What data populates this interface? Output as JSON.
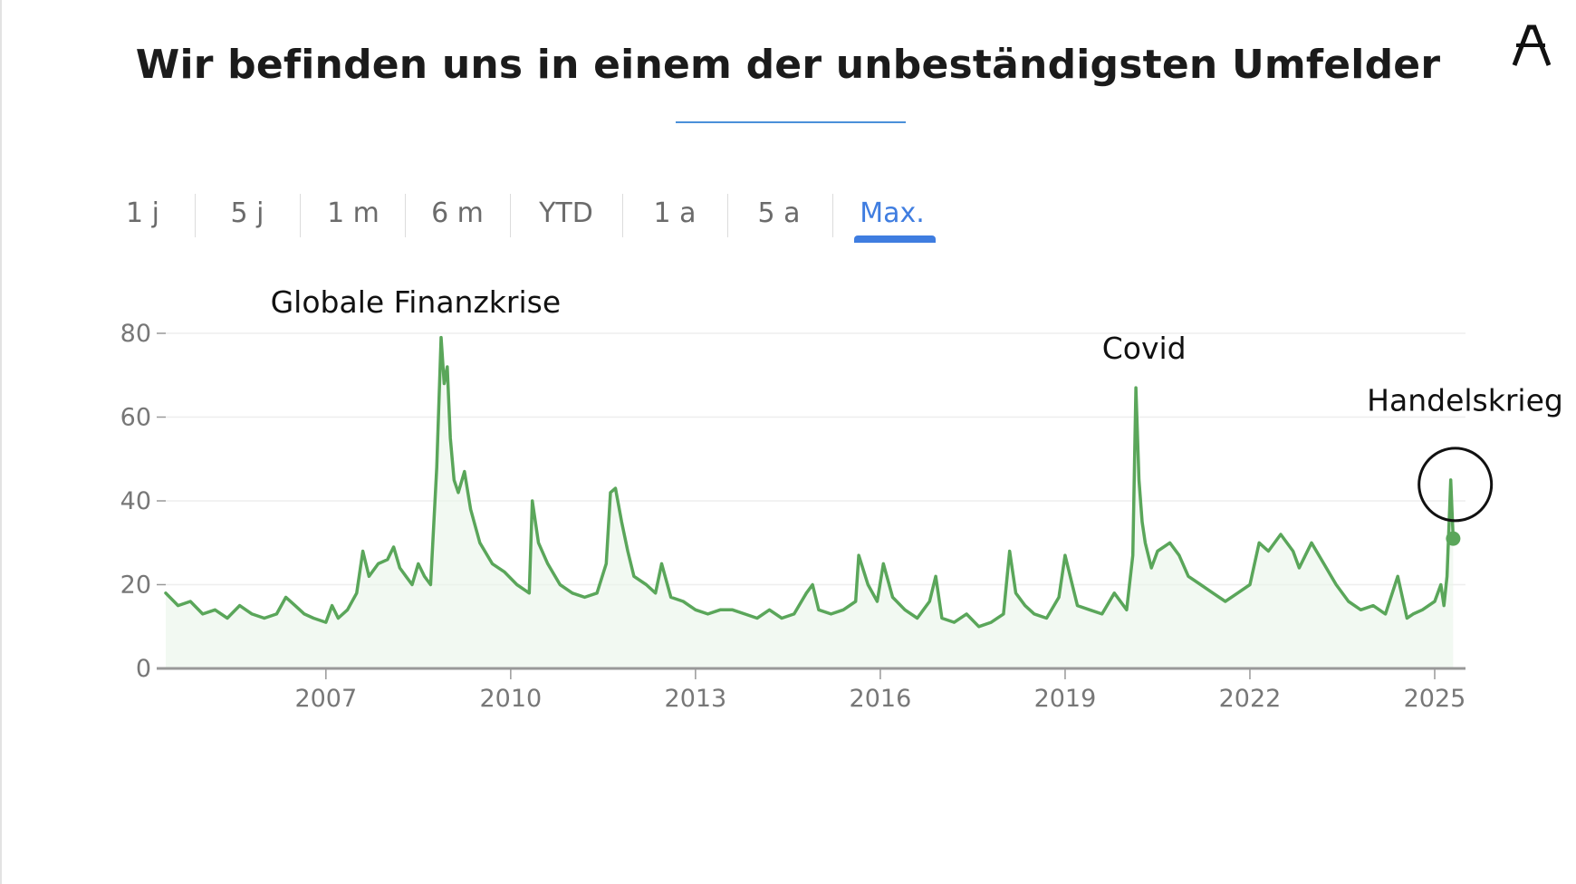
{
  "slide": {
    "title": "Wir befinden uns in einem der unbeständigsten Umfelder",
    "logo_icon": "letter-a-logo-icon"
  },
  "tabs": [
    {
      "label": "1 j",
      "active": false
    },
    {
      "label": "5 j",
      "active": false
    },
    {
      "label": "1 m",
      "active": false
    },
    {
      "label": "6 m",
      "active": false
    },
    {
      "label": "YTD",
      "active": false
    },
    {
      "label": "1 a",
      "active": false
    },
    {
      "label": "5 a",
      "active": false
    },
    {
      "label": "Max.",
      "active": true
    }
  ],
  "colors": {
    "line": "#5aa65a",
    "area": "#e9f5e9",
    "active_tab": "#3f7de0",
    "grid": "#eeeeee",
    "axis": "#999999"
  },
  "chart_data": {
    "type": "line",
    "title": "",
    "xlabel": "",
    "ylabel": "",
    "xlim": [
      2004.4,
      2025.5
    ],
    "ylim": [
      0,
      80
    ],
    "yticks": [
      0,
      20,
      40,
      60,
      80
    ],
    "xticks": [
      "2007",
      "2010",
      "2013",
      "2016",
      "2019",
      "2022",
      "2025"
    ],
    "xtick_values": [
      2007,
      2010,
      2013,
      2016,
      2019,
      2022,
      2025
    ],
    "grid": true,
    "annotations": [
      {
        "text": "Globale Finanzkrise",
        "x": 2006.1,
        "y": 85
      },
      {
        "text": "Covid",
        "x": 2019.6,
        "y": 74
      },
      {
        "text": "Handelskrieg",
        "x": 2023.9,
        "y": 61.5,
        "circled": true
      }
    ],
    "series": [
      {
        "x": [
          2004.4,
          2004.6,
          2004.8,
          2005.0,
          2005.2,
          2005.4,
          2005.6,
          2005.8,
          2006.0,
          2006.2,
          2006.35,
          2006.5,
          2006.65,
          2006.8,
          2007.0,
          2007.1,
          2007.2,
          2007.35,
          2007.5,
          2007.6,
          2007.7,
          2007.85,
          2008.0,
          2008.1,
          2008.2,
          2008.3,
          2008.4,
          2008.5,
          2008.6,
          2008.7,
          2008.8,
          2008.87,
          2008.92,
          2008.97,
          2009.02,
          2009.08,
          2009.15,
          2009.25,
          2009.35,
          2009.5,
          2009.7,
          2009.9,
          2010.1,
          2010.3,
          2010.35,
          2010.45,
          2010.6,
          2010.8,
          2011.0,
          2011.2,
          2011.4,
          2011.55,
          2011.62,
          2011.7,
          2011.8,
          2011.9,
          2012.0,
          2012.2,
          2012.35,
          2012.45,
          2012.6,
          2012.8,
          2013.0,
          2013.2,
          2013.4,
          2013.6,
          2013.8,
          2014.0,
          2014.2,
          2014.4,
          2014.6,
          2014.8,
          2014.9,
          2015.0,
          2015.2,
          2015.4,
          2015.6,
          2015.65,
          2015.8,
          2015.95,
          2016.05,
          2016.2,
          2016.4,
          2016.6,
          2016.8,
          2016.9,
          2017.0,
          2017.2,
          2017.4,
          2017.6,
          2017.8,
          2018.0,
          2018.1,
          2018.2,
          2018.35,
          2018.5,
          2018.7,
          2018.9,
          2019.0,
          2019.2,
          2019.4,
          2019.6,
          2019.8,
          2020.0,
          2020.1,
          2020.15,
          2020.2,
          2020.25,
          2020.3,
          2020.4,
          2020.5,
          2020.7,
          2020.85,
          2021.0,
          2021.2,
          2021.4,
          2021.6,
          2021.8,
          2022.0,
          2022.15,
          2022.3,
          2022.5,
          2022.7,
          2022.8,
          2023.0,
          2023.2,
          2023.4,
          2023.6,
          2023.8,
          2024.0,
          2024.2,
          2024.4,
          2024.55,
          2024.65,
          2024.8,
          2025.0,
          2025.1,
          2025.15,
          2025.2,
          2025.26,
          2025.3
        ],
        "values": [
          18,
          15,
          16,
          13,
          14,
          12,
          15,
          13,
          12,
          13,
          17,
          15,
          13,
          12,
          11,
          15,
          12,
          14,
          18,
          28,
          22,
          25,
          26,
          29,
          24,
          22,
          20,
          25,
          22,
          20,
          48,
          79,
          68,
          72,
          55,
          45,
          42,
          47,
          38,
          30,
          25,
          23,
          20,
          18,
          40,
          30,
          25,
          20,
          18,
          17,
          18,
          25,
          42,
          43,
          35,
          28,
          22,
          20,
          18,
          25,
          17,
          16,
          14,
          13,
          14,
          14,
          13,
          12,
          14,
          12,
          13,
          18,
          20,
          14,
          13,
          14,
          16,
          27,
          20,
          16,
          25,
          17,
          14,
          12,
          16,
          22,
          12,
          11,
          13,
          10,
          11,
          13,
          28,
          18,
          15,
          13,
          12,
          17,
          27,
          15,
          14,
          13,
          18,
          14,
          27,
          67,
          45,
          35,
          30,
          24,
          28,
          30,
          27,
          22,
          20,
          18,
          16,
          18,
          20,
          30,
          28,
          32,
          28,
          24,
          30,
          25,
          20,
          16,
          14,
          15,
          13,
          22,
          12,
          13,
          14,
          16,
          20,
          15,
          22,
          45,
          31
        ]
      }
    ]
  }
}
